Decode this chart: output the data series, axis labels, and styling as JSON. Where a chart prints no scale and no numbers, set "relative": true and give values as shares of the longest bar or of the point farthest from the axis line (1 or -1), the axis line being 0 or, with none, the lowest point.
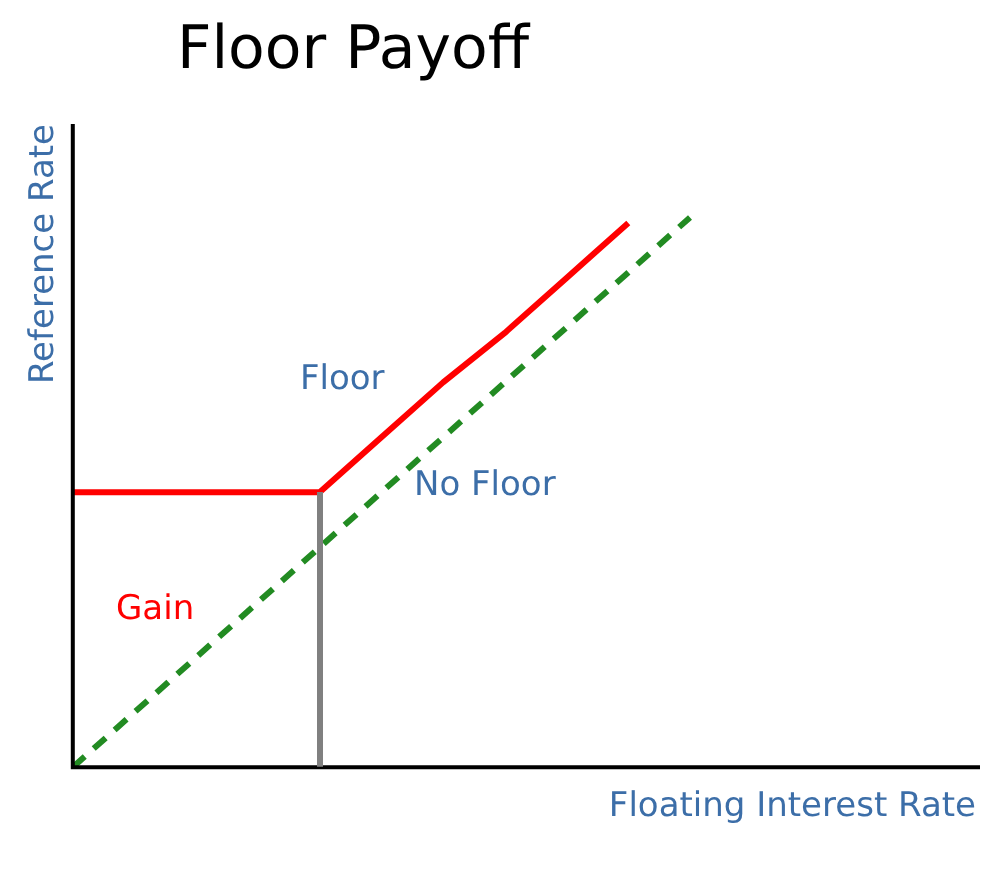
{
  "chart_data": {
    "type": "line",
    "title": "Floor Payoff",
    "xlabel": "Floating Interest Rate",
    "ylabel": "Reference Rate",
    "relative": true,
    "legend": false,
    "grid": false,
    "categories": [
      null,
      null,
      null,
      null,
      null,
      null,
      null,
      null,
      null,
      null,
      null
    ],
    "series": [
      {
        "name": "Floor",
        "color": "#ff0000",
        "values": [
          0.5,
          0.5,
          0.5,
          0.5,
          0.5,
          0.6,
          0.7,
          0.79,
          0.89,
          0.99,
          null
        ]
      },
      {
        "name": "No Floor",
        "color": "#228b22",
        "line_style": "dashed",
        "values": [
          0,
          0.1,
          0.2,
          0.3,
          0.4,
          0.5,
          0.6,
          0.7,
          0.8,
          0.9,
          1.0
        ]
      }
    ],
    "annotations": [
      "Gain"
    ]
  }
}
